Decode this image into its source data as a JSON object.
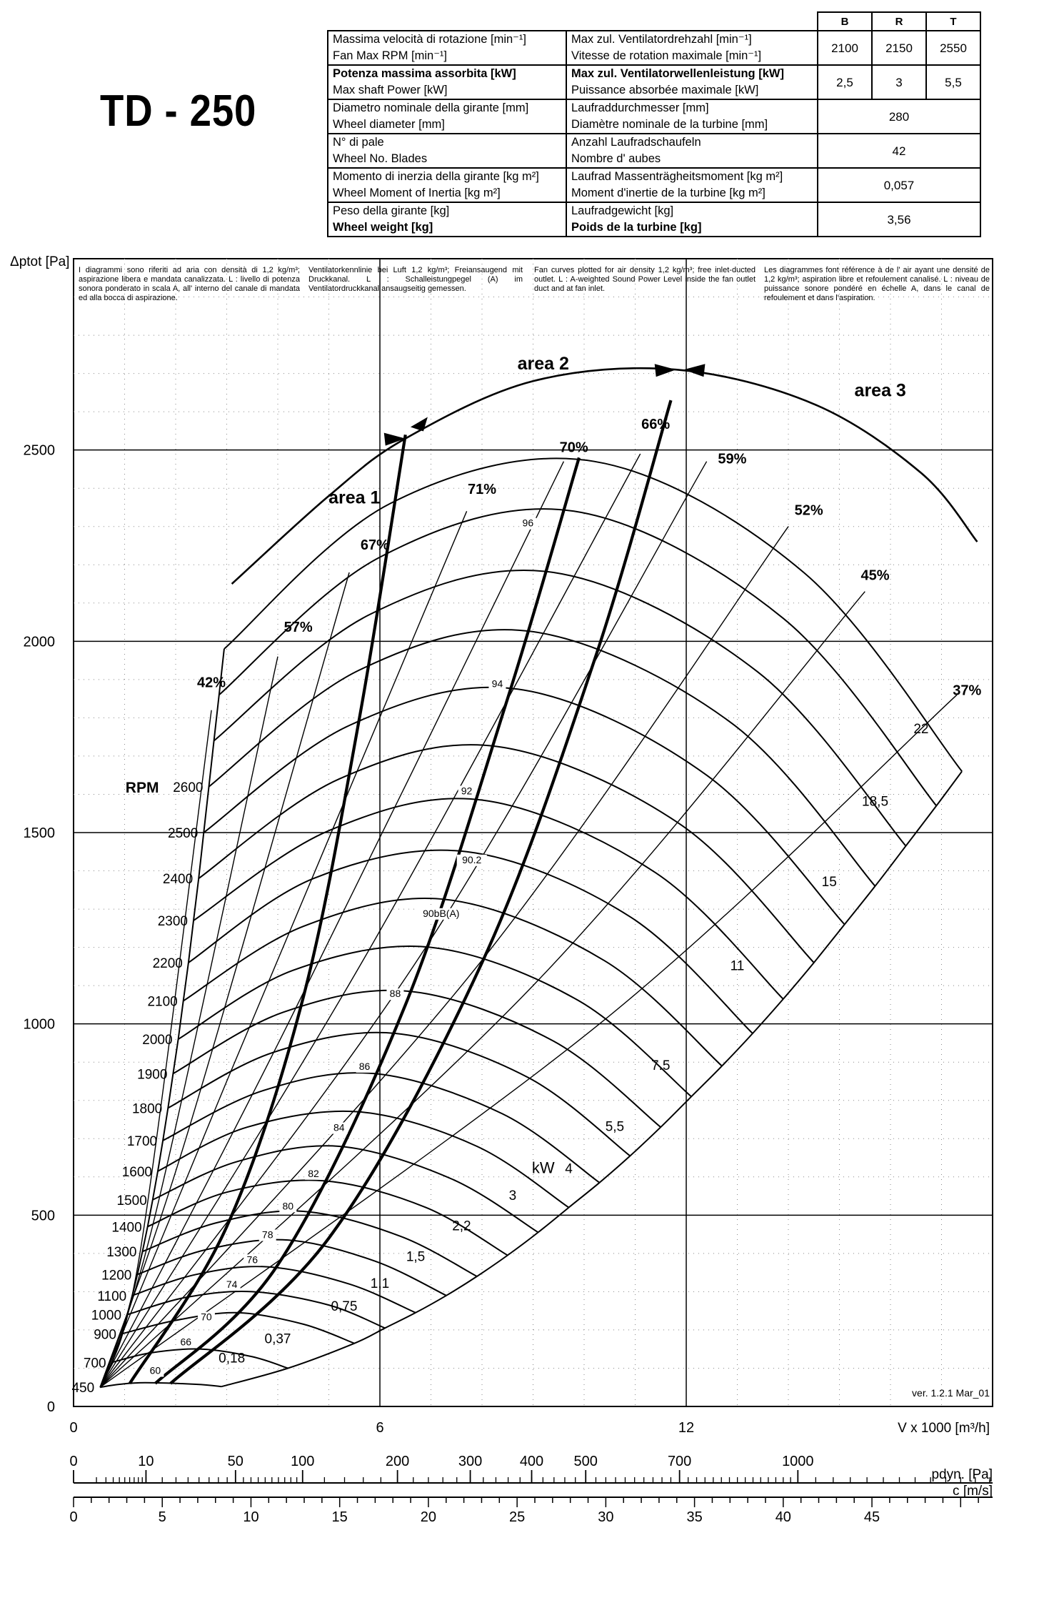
{
  "model": "TD - 250",
  "spec_table": {
    "columns": [
      "B",
      "R",
      "T"
    ],
    "rows": [
      {
        "it": "Massima velocità di rotazione [min⁻¹]",
        "en": "Fan Max RPM [min⁻¹]",
        "de": "Max zul. Ventilatordrehzahl [min⁻¹]",
        "fr": "Vitesse de rotation maximale [min⁻¹]",
        "values": [
          "2100",
          "2150",
          "2550"
        ],
        "bold": false
      },
      {
        "it": "Potenza massima assorbita [kW]",
        "en": "Max shaft Power [kW]",
        "de": "Max zul. Ventilatorwellenleistung [kW]",
        "fr": "Puissance absorbée maximale [kW]",
        "values": [
          "2,5",
          "3",
          "5,5"
        ],
        "bold": true
      },
      {
        "it": "Diametro nominale della girante [mm]",
        "en": "Wheel diameter [mm]",
        "de": "Laufraddurchmesser [mm]",
        "fr": "Diamètre nominale de la turbine [mm]",
        "values": [
          "280"
        ],
        "bold": false
      },
      {
        "it": "N° di pale",
        "en": "Wheel No. Blades",
        "de": "Anzahl Laufradschaufeln",
        "fr": "Nombre d' aubes",
        "values": [
          "42"
        ],
        "bold": true
      },
      {
        "it": "Momento di inerzia della girante [kg m²]",
        "en": "Wheel Moment of Inertia [kg m²]",
        "de": "Laufrad Massenträgheitsmoment [kg m²]",
        "fr": "Moment d'inertie de la turbine [kg m²]",
        "values": [
          "0,057"
        ],
        "bold": false
      },
      {
        "it": "Peso della girante [kg]",
        "en": "Wheel weight [kg]",
        "de": "Laufradgewicht [kg]",
        "fr": "Poids de la turbine [kg]",
        "values": [
          "3,56"
        ],
        "bold": true
      }
    ]
  },
  "notes": {
    "it": "I diagrammi sono riferiti ad aria con densità di 1,2 kg/m³; aspirazione libera e mandata canalizzata. L  : livello di potenza sonora ponderato in scala A, all' interno del canale di mandata ed alla bocca di aspirazione.",
    "de": "Ventilatorkennlinie bei Luft 1,2 kg/m³; Freiansaugend mit Druckkanal. L  : Schalleistungpegel (A) im Ventilatordruckkanal ansaugseitig gemessen.",
    "en": "Fan curves plotted for air density 1,2 kg/m³; free inlet-ducted outlet. L  : A-weighted Sound Power Level inside the fan outlet duct and at fan inlet.",
    "fr": "Les diagrammes font référence à de l' air ayant une densité de 1,2 kg/m³; aspiration libre et refoulement canalisé. L  : niveau de puissance sonore pondéré en échelle A, dans le canal de refoulement et dans l'aspiration."
  },
  "version": "ver. 1.2.1 Mar_01",
  "chart_data": {
    "type": "line",
    "ylabel": "Δptot [Pa]",
    "xlabel": "V x 1000 [m³/h]",
    "xlim": [
      0,
      18
    ],
    "ylim": [
      0,
      3000
    ],
    "x_ticks": [
      "0",
      "6",
      "12"
    ],
    "y_ticks": [
      "0",
      "500",
      "1000",
      "1500",
      "2000",
      "2500"
    ],
    "grid": true,
    "rpm_label": "RPM",
    "rpm_curves": [
      {
        "rpm": "450",
        "points": [
          [
            0.52,
            50
          ],
          [
            0.9,
            58
          ],
          [
            1.4,
            62
          ],
          [
            2.4,
            58
          ],
          [
            2.9,
            52
          ]
        ]
      },
      {
        "rpm": "700",
        "points": [
          [
            0.75,
            115
          ],
          [
            1.5,
            140
          ],
          [
            2.5,
            150
          ],
          [
            3.5,
            130
          ],
          [
            4.2,
            100
          ]
        ]
      },
      {
        "rpm": "900",
        "points": [
          [
            0.95,
            190
          ],
          [
            2.0,
            225
          ],
          [
            3.2,
            245
          ],
          [
            4.5,
            215
          ],
          [
            5.5,
            165
          ]
        ]
      },
      {
        "rpm": "1000",
        "points": [
          [
            1.05,
            240
          ],
          [
            2.2,
            285
          ],
          [
            3.5,
            300
          ],
          [
            5.0,
            265
          ],
          [
            6.1,
            205
          ]
        ]
      },
      {
        "rpm": "1100",
        "points": [
          [
            1.15,
            290
          ],
          [
            2.4,
            345
          ],
          [
            3.8,
            365
          ],
          [
            5.4,
            320
          ],
          [
            6.7,
            245
          ]
        ]
      },
      {
        "rpm": "1200",
        "points": [
          [
            1.25,
            345
          ],
          [
            2.6,
            410
          ],
          [
            4.2,
            435
          ],
          [
            5.9,
            380
          ],
          [
            7.3,
            290
          ]
        ]
      },
      {
        "rpm": "1300",
        "points": [
          [
            1.35,
            405
          ],
          [
            2.8,
            480
          ],
          [
            4.5,
            510
          ],
          [
            6.4,
            445
          ],
          [
            7.9,
            340
          ]
        ]
      },
      {
        "rpm": "1400",
        "points": [
          [
            1.45,
            470
          ],
          [
            3.0,
            560
          ],
          [
            4.9,
            590
          ],
          [
            6.9,
            520
          ],
          [
            8.5,
            395
          ]
        ]
      },
      {
        "rpm": "1500",
        "points": [
          [
            1.55,
            540
          ],
          [
            3.2,
            640
          ],
          [
            5.2,
            680
          ],
          [
            7.4,
            595
          ],
          [
            9.1,
            455
          ]
        ]
      },
      {
        "rpm": "1600",
        "points": [
          [
            1.65,
            615
          ],
          [
            3.4,
            730
          ],
          [
            5.6,
            770
          ],
          [
            7.9,
            680
          ],
          [
            9.7,
            520
          ]
        ]
      },
      {
        "rpm": "1700",
        "points": [
          [
            1.75,
            695
          ],
          [
            3.7,
            825
          ],
          [
            5.9,
            870
          ],
          [
            8.4,
            765
          ],
          [
            10.3,
            585
          ]
        ]
      },
      {
        "rpm": "1800",
        "points": [
          [
            1.85,
            780
          ],
          [
            3.9,
            925
          ],
          [
            6.3,
            975
          ],
          [
            8.9,
            860
          ],
          [
            10.9,
            655
          ]
        ]
      },
      {
        "rpm": "1900",
        "points": [
          [
            1.95,
            870
          ],
          [
            4.1,
            1030
          ],
          [
            6.6,
            1085
          ],
          [
            9.4,
            955
          ],
          [
            11.5,
            730
          ]
        ]
      },
      {
        "rpm": "2000",
        "points": [
          [
            2.05,
            960
          ],
          [
            4.3,
            1140
          ],
          [
            7.0,
            1200
          ],
          [
            9.9,
            1060
          ],
          [
            12.1,
            810
          ]
        ]
      },
      {
        "rpm": "2100",
        "points": [
          [
            2.15,
            1060
          ],
          [
            4.5,
            1255
          ],
          [
            7.3,
            1325
          ],
          [
            10.4,
            1165
          ],
          [
            12.7,
            890
          ]
        ]
      },
      {
        "rpm": "2200",
        "points": [
          [
            2.25,
            1160
          ],
          [
            4.7,
            1380
          ],
          [
            7.7,
            1450
          ],
          [
            10.9,
            1280
          ],
          [
            13.3,
            975
          ]
        ]
      },
      {
        "rpm": "2300",
        "points": [
          [
            2.35,
            1270
          ],
          [
            5.0,
            1505
          ],
          [
            8.0,
            1585
          ],
          [
            11.4,
            1395
          ],
          [
            13.9,
            1065
          ]
        ]
      },
      {
        "rpm": "2400",
        "points": [
          [
            2.45,
            1380
          ],
          [
            5.2,
            1640
          ],
          [
            8.3,
            1725
          ],
          [
            11.9,
            1520
          ],
          [
            14.5,
            1160
          ]
        ]
      },
      {
        "rpm": "2500",
        "points": [
          [
            2.55,
            1500
          ],
          [
            5.4,
            1780
          ],
          [
            8.7,
            1875
          ],
          [
            12.4,
            1650
          ],
          [
            15.1,
            1260
          ]
        ]
      },
      {
        "rpm": "2600",
        "points": [
          [
            2.65,
            1620
          ],
          [
            5.6,
            1925
          ],
          [
            9.0,
            2025
          ],
          [
            12.9,
            1785
          ],
          [
            15.7,
            1360
          ]
        ]
      },
      {
        "rpm": "",
        "points": [
          [
            2.75,
            1740
          ],
          [
            5.8,
            2070
          ],
          [
            9.4,
            2180
          ],
          [
            13.4,
            1920
          ],
          [
            16.3,
            1465
          ]
        ]
      },
      {
        "rpm": "",
        "points": [
          [
            2.85,
            1860
          ],
          [
            6.0,
            2220
          ],
          [
            9.8,
            2340
          ],
          [
            13.9,
            2060
          ],
          [
            16.9,
            1570
          ]
        ]
      },
      {
        "rpm": "",
        "points": [
          [
            2.95,
            1980
          ],
          [
            6.2,
            2360
          ],
          [
            10.2,
            2470
          ],
          [
            14.3,
            2180
          ],
          [
            17.4,
            1660
          ]
        ]
      }
    ],
    "efficiency_labels": [
      {
        "label": "42%",
        "x": 2.7,
        "y": 1880
      },
      {
        "label": "57%",
        "x": 4.4,
        "y": 2025
      },
      {
        "label": "67%",
        "x": 5.9,
        "y": 2240
      },
      {
        "label": "71%",
        "x": 8.0,
        "y": 2385
      },
      {
        "label": "70%",
        "x": 9.8,
        "y": 2495
      },
      {
        "label": "66%",
        "x": 11.4,
        "y": 2555
      },
      {
        "label": "59%",
        "x": 12.9,
        "y": 2465
      },
      {
        "label": "52%",
        "x": 14.4,
        "y": 2330
      },
      {
        "label": "45%",
        "x": 15.7,
        "y": 2160
      },
      {
        "label": "37%",
        "x": 17.5,
        "y": 1860
      }
    ],
    "efficiency_lines": [
      {
        "points": [
          [
            0.52,
            50
          ],
          [
            1.3,
            400
          ],
          [
            2.7,
            1820
          ]
        ]
      },
      {
        "points": [
          [
            0.52,
            50
          ],
          [
            1.6,
            500
          ],
          [
            4.0,
            1960
          ]
        ]
      },
      {
        "points": [
          [
            0.52,
            50
          ],
          [
            2.2,
            700
          ],
          [
            5.4,
            2180
          ]
        ]
      },
      {
        "points": [
          [
            0.52,
            50
          ],
          [
            3.0,
            850
          ],
          [
            7.7,
            2340
          ]
        ]
      },
      {
        "points": [
          [
            0.52,
            50
          ],
          [
            4.2,
            1000
          ],
          [
            9.6,
            2470
          ]
        ]
      },
      {
        "points": [
          [
            0.52,
            50
          ],
          [
            5.6,
            1150
          ],
          [
            11.1,
            2490
          ]
        ]
      },
      {
        "points": [
          [
            0.52,
            50
          ],
          [
            6.8,
            1180
          ],
          [
            12.4,
            2470
          ]
        ]
      },
      {
        "points": [
          [
            0.52,
            50
          ],
          [
            7.9,
            1150
          ],
          [
            14.0,
            2300
          ]
        ]
      },
      {
        "points": [
          [
            0.52,
            50
          ],
          [
            9.0,
            1100
          ],
          [
            15.5,
            2130
          ]
        ]
      },
      {
        "points": [
          [
            0.52,
            50
          ],
          [
            10.3,
            1000
          ],
          [
            17.3,
            1860
          ]
        ]
      }
    ],
    "power_labels": [
      {
        "label": "0,18",
        "x": 3.1,
        "y": 115
      },
      {
        "label": "0,37",
        "x": 4.0,
        "y": 165
      },
      {
        "label": "0,75",
        "x": 5.3,
        "y": 250
      },
      {
        "label": "1,1",
        "x": 6.0,
        "y": 310
      },
      {
        "label": "1,5",
        "x": 6.7,
        "y": 380
      },
      {
        "label": "2,2",
        "x": 7.6,
        "y": 460
      },
      {
        "label": "3",
        "x": 8.6,
        "y": 540
      },
      {
        "label": "4",
        "x": 9.7,
        "y": 610
      },
      {
        "label": "5,5",
        "x": 10.6,
        "y": 720
      },
      {
        "label": "7.5",
        "x": 11.5,
        "y": 880
      },
      {
        "label": "11",
        "x": 13.0,
        "y": 1140
      },
      {
        "label": "15",
        "x": 14.8,
        "y": 1360
      },
      {
        "label": "18,5",
        "x": 15.7,
        "y": 1570
      },
      {
        "label": "22",
        "x": 16.6,
        "y": 1760
      }
    ],
    "power_unit_label": "kW",
    "sound_labels": [
      {
        "label": "60",
        "x": 1.6,
        "y": 85
      },
      {
        "label": "66",
        "x": 2.2,
        "y": 160
      },
      {
        "label": "70",
        "x": 2.6,
        "y": 225
      },
      {
        "label": "74",
        "x": 3.1,
        "y": 310
      },
      {
        "label": "76",
        "x": 3.5,
        "y": 375
      },
      {
        "label": "78",
        "x": 3.8,
        "y": 440
      },
      {
        "label": "80",
        "x": 4.2,
        "y": 515
      },
      {
        "label": "82",
        "x": 4.7,
        "y": 600
      },
      {
        "label": "84",
        "x": 5.2,
        "y": 720
      },
      {
        "label": "86",
        "x": 5.7,
        "y": 880
      },
      {
        "label": "88",
        "x": 6.3,
        "y": 1070
      },
      {
        "label": "90bB(A)",
        "x": 7.2,
        "y": 1280
      },
      {
        "label": "90.2",
        "x": 7.8,
        "y": 1420
      },
      {
        "label": "92",
        "x": 7.7,
        "y": 1600
      },
      {
        "label": "94",
        "x": 8.3,
        "y": 1880
      },
      {
        "label": "96",
        "x": 8.9,
        "y": 2300
      }
    ],
    "system_curves": [
      {
        "points": [
          [
            1.1,
            60
          ],
          [
            3.0,
            470
          ],
          [
            4.5,
            1070
          ],
          [
            5.6,
            1800
          ],
          [
            6.5,
            2540
          ]
        ]
      },
      {
        "points": [
          [
            1.6,
            60
          ],
          [
            4.0,
            370
          ],
          [
            6.5,
            1050
          ],
          [
            8.5,
            1850
          ],
          [
            9.9,
            2480
          ]
        ]
      },
      {
        "points": [
          [
            1.9,
            60
          ],
          [
            5.0,
            440
          ],
          [
            8.0,
            1160
          ],
          [
            10.2,
            1950
          ],
          [
            11.7,
            2630
          ]
        ]
      }
    ],
    "areas": [
      {
        "label": "area 1",
        "x": 5.5,
        "y": 2360
      },
      {
        "label": "area 2",
        "x": 9.2,
        "y": 2710
      },
      {
        "label": "area 3",
        "x": 15.8,
        "y": 2640
      }
    ],
    "dynamic_pressure_scale": {
      "label": "pdyn. [Pa]",
      "ticks": [
        {
          "label": "0",
          "value": 0
        },
        {
          "label": "10",
          "value": 10
        },
        {
          "label": "50",
          "value": 50
        },
        {
          "label": "100",
          "value": 100
        },
        {
          "label": "200",
          "value": 200
        },
        {
          "label": "300",
          "value": 300
        },
        {
          "label": "400",
          "value": 400
        },
        {
          "label": "500",
          "value": 500
        },
        {
          "label": "700",
          "value": 700
        },
        {
          "label": "1000",
          "value": 1000
        }
      ]
    },
    "velocity_scale": {
      "label": "c [m/s]",
      "ticks": [
        "0",
        "5",
        "10",
        "15",
        "20",
        "25",
        "30",
        "35",
        "40",
        "45"
      ]
    }
  }
}
